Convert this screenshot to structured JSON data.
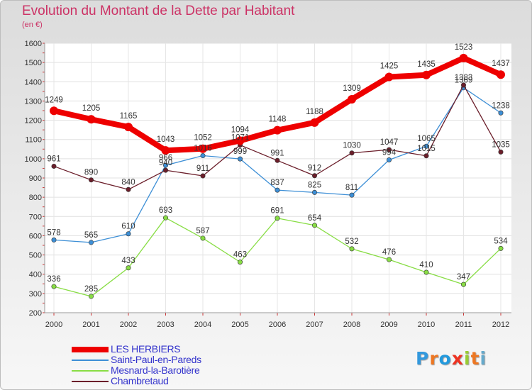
{
  "header": {
    "title": "Evolution du Montant de la Dette par Habitant",
    "unit": "(en €)"
  },
  "logo": {
    "text": "Proxiti",
    "colors": [
      "#3399dd",
      "#ee7722",
      "#2299dd",
      "#ee3322",
      "#99cc33",
      "#ee7722",
      "#66aacc"
    ]
  },
  "chart_data": {
    "type": "line",
    "title": "Evolution du Montant de la Dette par Habitant",
    "ylabel": "(en €)",
    "xlabel": "",
    "ylim": [
      200,
      1600
    ],
    "yticks": [
      200,
      300,
      400,
      500,
      600,
      700,
      800,
      900,
      1000,
      1100,
      1200,
      1300,
      1400,
      1500,
      1600
    ],
    "x": [
      "2000",
      "2001",
      "2002",
      "2003",
      "2004",
      "2005",
      "2006",
      "2007",
      "2008",
      "2009",
      "2010",
      "2011",
      "2012"
    ],
    "grid": true,
    "legend_position": "bottom-left",
    "series": [
      {
        "name": "LES HERBIERS",
        "color": "#ee0000",
        "values": [
          1249,
          1205,
          1165,
          1043,
          1052,
          1094,
          1148,
          1188,
          1309,
          1425,
          1435,
          1523,
          1437
        ]
      },
      {
        "name": "Saint-Paul-en-Pareds",
        "color": "#3d8fd6",
        "values": [
          578,
          565,
          610,
          966,
          1016,
          999,
          837,
          825,
          811,
          994,
          1065,
          1369,
          1238
        ]
      },
      {
        "name": "Mesnard-la-Barotière",
        "color": "#88dd44",
        "values": [
          336,
          285,
          433,
          693,
          587,
          463,
          691,
          654,
          532,
          476,
          410,
          347,
          534
        ]
      },
      {
        "name": "Chambretaud",
        "color": "#6b1e2a",
        "values": [
          961,
          890,
          840,
          940,
          911,
          1071,
          991,
          912,
          1030,
          1047,
          1015,
          1383,
          1035
        ]
      }
    ]
  }
}
